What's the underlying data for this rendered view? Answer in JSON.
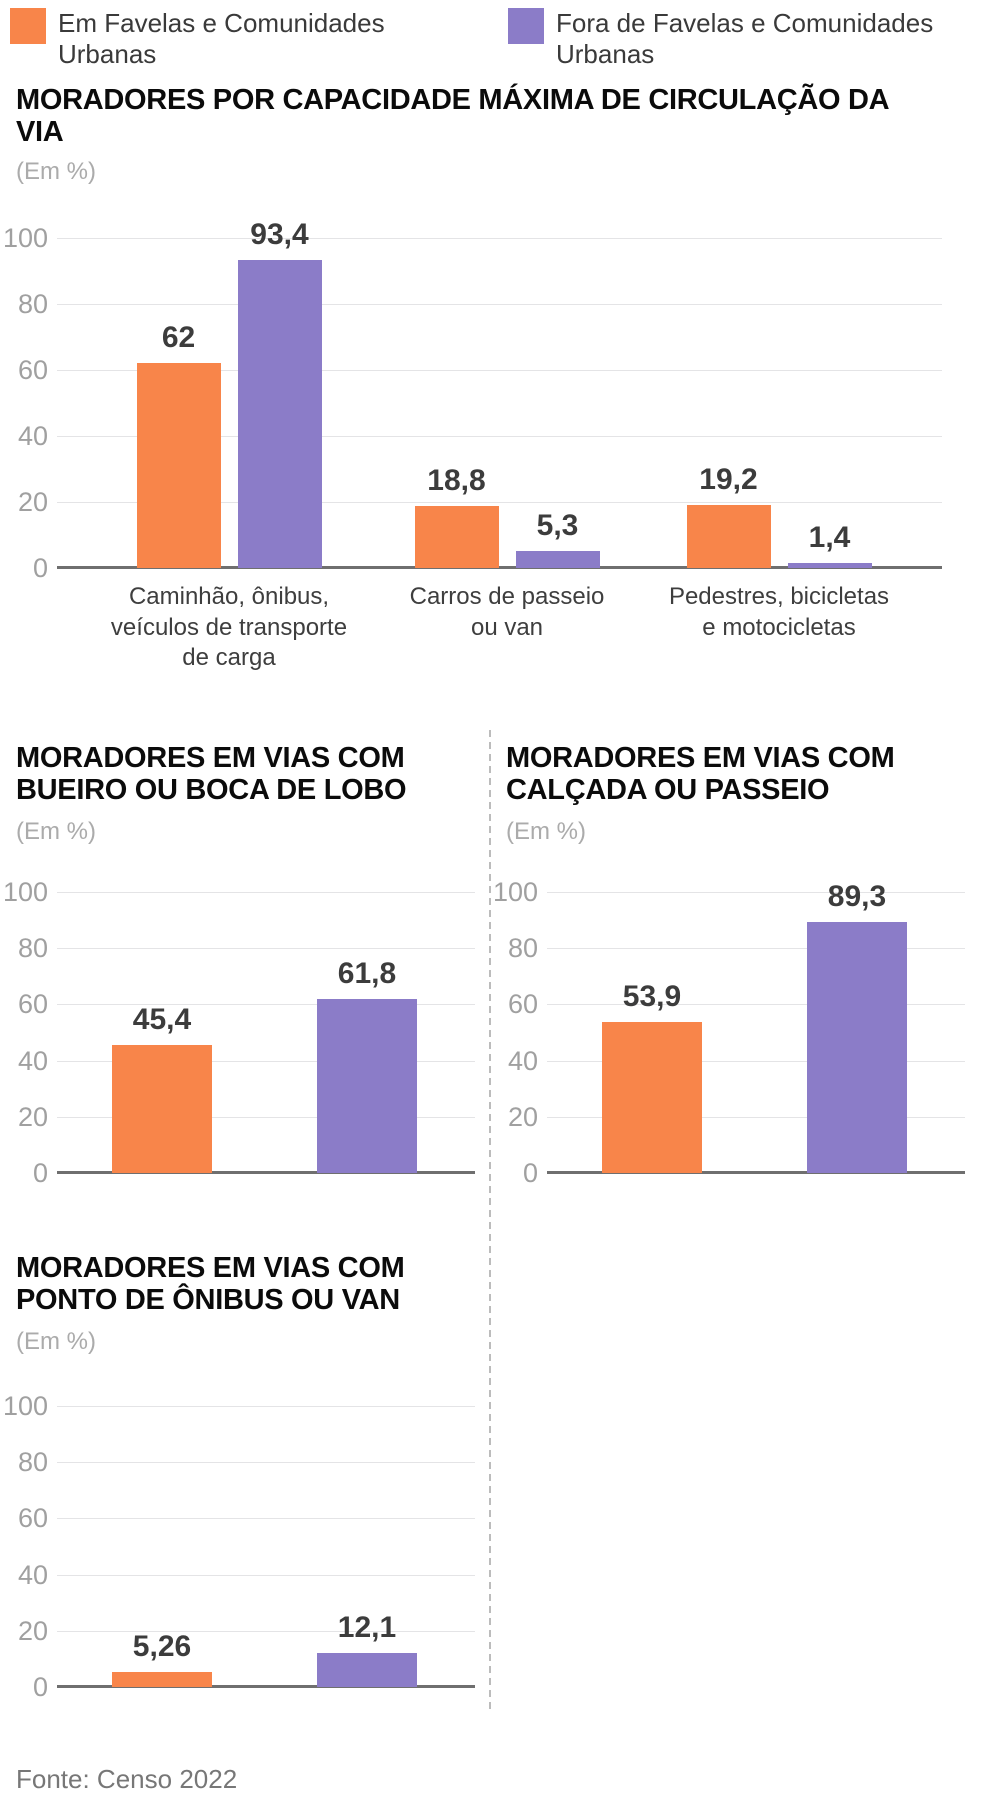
{
  "legend": {
    "items": [
      {
        "label": "Em Favelas e Comunidades Urbanas",
        "color": "#F8854A"
      },
      {
        "label": "Fora de Favelas e Comunidades Urbanas",
        "color": "#8B7CC8"
      }
    ]
  },
  "footer": {
    "source": "Fonte: Censo 2022"
  },
  "chart_data": [
    {
      "type": "bar",
      "title": "MORADORES POR CAPACIDADE MÁXIMA DE CIRCULAÇÃO DA VIA",
      "subtitle": "(Em %)",
      "ylim": [
        0,
        100
      ],
      "yticks": [
        0,
        20,
        40,
        60,
        80,
        100
      ],
      "grid": true,
      "legend_position": "top",
      "categories": [
        "Caminhão, ônibus,\nveículos de transporte\nde carga",
        "Carros de passeio\nou van",
        "Pedestres, bicicletas\ne motocicletas"
      ],
      "series": [
        {
          "name": "Em Favelas e Comunidades Urbanas",
          "color": "#F8854A",
          "values": [
            62,
            18.8,
            19.2
          ],
          "value_labels": [
            "62",
            "18,8",
            "19,2"
          ]
        },
        {
          "name": "Fora de Favelas e Comunidades Urbanas",
          "color": "#8B7CC8",
          "values": [
            93.4,
            5.3,
            1.4
          ],
          "value_labels": [
            "93,4",
            "5,3",
            "1,4"
          ]
        }
      ]
    },
    {
      "type": "bar",
      "title": "MORADORES EM VIAS COM BUEIRO OU BOCA DE LOBO",
      "subtitle": "(Em %)",
      "ylim": [
        0,
        100
      ],
      "yticks": [
        0,
        20,
        40,
        60,
        80,
        100
      ],
      "grid": true,
      "categories": [
        ""
      ],
      "series": [
        {
          "name": "Em Favelas e Comunidades Urbanas",
          "color": "#F8854A",
          "values": [
            45.4
          ],
          "value_labels": [
            "45,4"
          ]
        },
        {
          "name": "Fora de Favelas e Comunidades Urbanas",
          "color": "#8B7CC8",
          "values": [
            61.8
          ],
          "value_labels": [
            "61,8"
          ]
        }
      ]
    },
    {
      "type": "bar",
      "title": "MORADORES EM VIAS COM CALÇADA OU PASSEIO",
      "subtitle": "(Em %)",
      "ylim": [
        0,
        100
      ],
      "yticks": [
        0,
        20,
        40,
        60,
        80,
        100
      ],
      "grid": true,
      "categories": [
        ""
      ],
      "series": [
        {
          "name": "Em Favelas e Comunidades Urbanas",
          "color": "#F8854A",
          "values": [
            53.9
          ],
          "value_labels": [
            "53,9"
          ]
        },
        {
          "name": "Fora de Favelas e Comunidades Urbanas",
          "color": "#8B7CC8",
          "values": [
            89.3
          ],
          "value_labels": [
            "89,3"
          ]
        }
      ]
    },
    {
      "type": "bar",
      "title": "MORADORES EM VIAS COM PONTO DE ÔNIBUS OU VAN",
      "subtitle": "(Em %)",
      "ylim": [
        0,
        100
      ],
      "yticks": [
        0,
        20,
        40,
        60,
        80,
        100
      ],
      "grid": true,
      "categories": [
        ""
      ],
      "series": [
        {
          "name": "Em Favelas e Comunidades Urbanas",
          "color": "#F8854A",
          "values": [
            5.26
          ],
          "value_labels": [
            "5,26"
          ]
        },
        {
          "name": "Fora de Favelas e Comunidades Urbanas",
          "color": "#8B7CC8",
          "values": [
            12.1
          ],
          "value_labels": [
            "12,1"
          ]
        }
      ]
    }
  ]
}
